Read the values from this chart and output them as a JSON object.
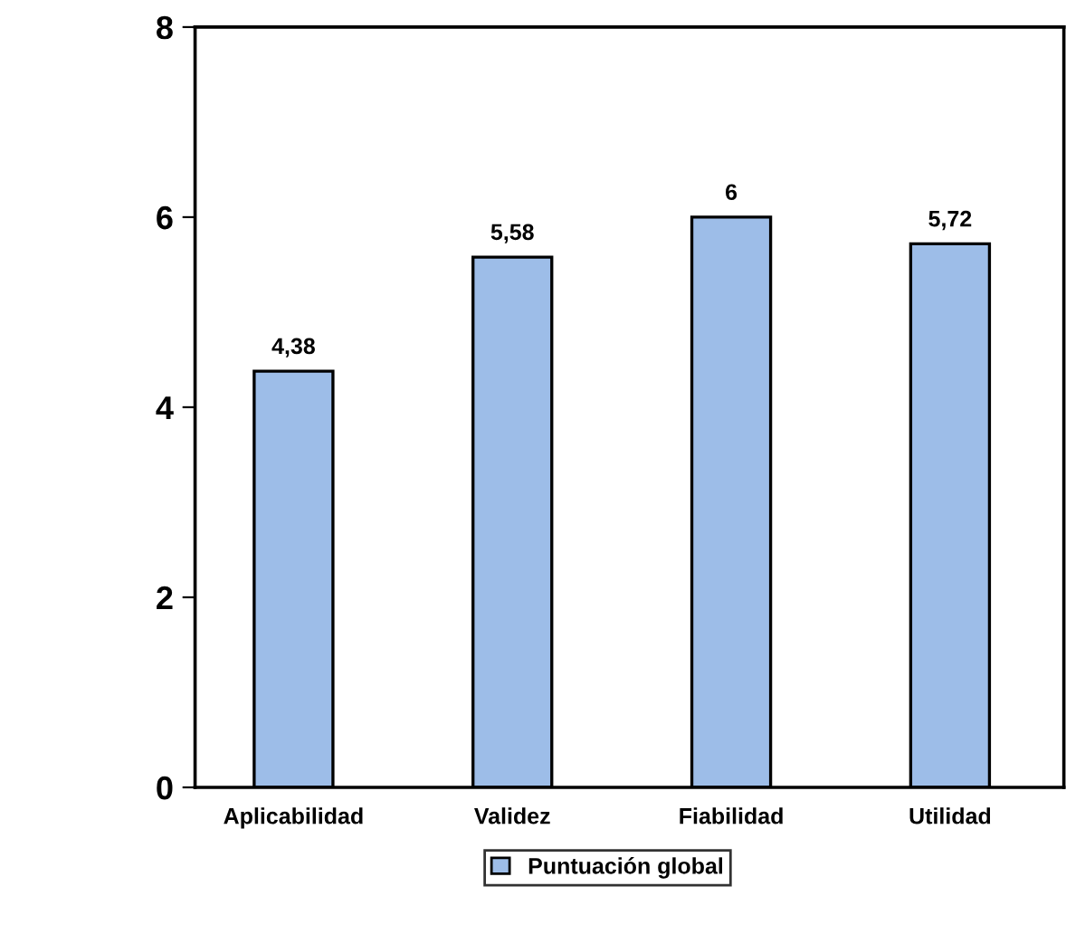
{
  "chart_data": {
    "type": "bar",
    "categories": [
      "Aplicabilidad",
      "Validez",
      "Fiabilidad",
      "Utilidad"
    ],
    "series": [
      {
        "name": "Puntuación global",
        "color": "#9dbde8",
        "values": [
          4.38,
          5.58,
          6,
          5.72
        ],
        "value_labels": [
          "4,38",
          "5,58",
          "6",
          "5,72"
        ]
      }
    ],
    "ylim": [
      0,
      8
    ],
    "yticks": [
      0,
      2,
      4,
      6,
      8
    ],
    "grid": false,
    "legend": "bottom"
  }
}
